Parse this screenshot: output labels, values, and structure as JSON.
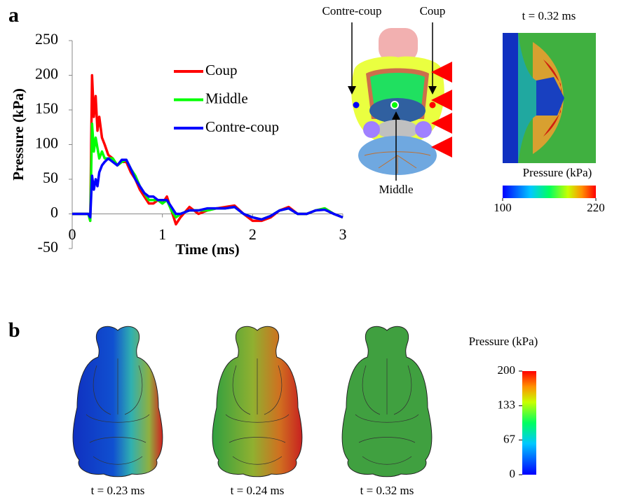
{
  "panel_labels": [
    "a",
    "b"
  ],
  "chart_data": {
    "type": "line",
    "xlabel": "Time (ms)",
    "ylabel": "Pressure (kPa)",
    "xlim": [
      0,
      3
    ],
    "ylim": [
      -50,
      250
    ],
    "xticks": [
      0,
      1,
      2,
      3
    ],
    "yticks": [
      -50,
      0,
      50,
      100,
      150,
      200,
      250
    ],
    "x": [
      0,
      0.18,
      0.2,
      0.22,
      0.24,
      0.26,
      0.28,
      0.3,
      0.33,
      0.36,
      0.4,
      0.45,
      0.5,
      0.55,
      0.6,
      0.65,
      0.7,
      0.75,
      0.8,
      0.85,
      0.9,
      0.95,
      1.0,
      1.05,
      1.1,
      1.15,
      1.2,
      1.3,
      1.4,
      1.5,
      1.6,
      1.7,
      1.8,
      1.9,
      2.0,
      2.1,
      2.2,
      2.3,
      2.4,
      2.5,
      2.6,
      2.7,
      2.8,
      2.9,
      3.0
    ],
    "series": [
      {
        "name": "Coup",
        "color": "#ff0000",
        "values": [
          0,
          0,
          -10,
          200,
          140,
          170,
          120,
          140,
          110,
          100,
          85,
          80,
          70,
          75,
          75,
          60,
          50,
          35,
          25,
          15,
          15,
          20,
          15,
          25,
          5,
          -15,
          -5,
          10,
          0,
          5,
          8,
          10,
          12,
          0,
          -10,
          -10,
          -5,
          5,
          10,
          0,
          0,
          5,
          8,
          0,
          -5
        ]
      },
      {
        "name": "Middle",
        "color": "#00ff00",
        "values": [
          0,
          0,
          -10,
          130,
          90,
          110,
          95,
          80,
          90,
          80,
          80,
          80,
          70,
          75,
          78,
          65,
          55,
          40,
          30,
          20,
          20,
          20,
          15,
          20,
          5,
          -5,
          0,
          5,
          5,
          5,
          8,
          8,
          10,
          0,
          -5,
          -8,
          -3,
          5,
          8,
          0,
          0,
          5,
          8,
          0,
          -5
        ]
      },
      {
        "name": "Contre-coup",
        "color": "#0000ff",
        "values": [
          0,
          0,
          -5,
          55,
          35,
          50,
          40,
          60,
          70,
          75,
          80,
          75,
          70,
          78,
          78,
          65,
          50,
          40,
          30,
          25,
          25,
          20,
          20,
          20,
          10,
          0,
          0,
          5,
          5,
          8,
          8,
          8,
          10,
          0,
          -5,
          -8,
          -3,
          5,
          8,
          0,
          0,
          5,
          6,
          0,
          -5
        ]
      }
    ]
  },
  "diagram": {
    "labels": {
      "contre_coup": "Contre-coup",
      "coup": "Coup",
      "middle": "Middle"
    }
  },
  "snapshot": {
    "title": "t = 0.32 ms",
    "colorbar_label": "Pressure (kPa)",
    "clim": [
      100,
      220
    ],
    "colorbar_ticks": [
      100,
      220
    ]
  },
  "panel_b": {
    "captions": [
      "t = 0.23 ms",
      "t = 0.24 ms",
      "t = 0.32 ms"
    ],
    "colorbar_label": "Pressure (kPa)",
    "clim": [
      0,
      200
    ],
    "colorbar_ticks": [
      0,
      67,
      133,
      200
    ]
  }
}
